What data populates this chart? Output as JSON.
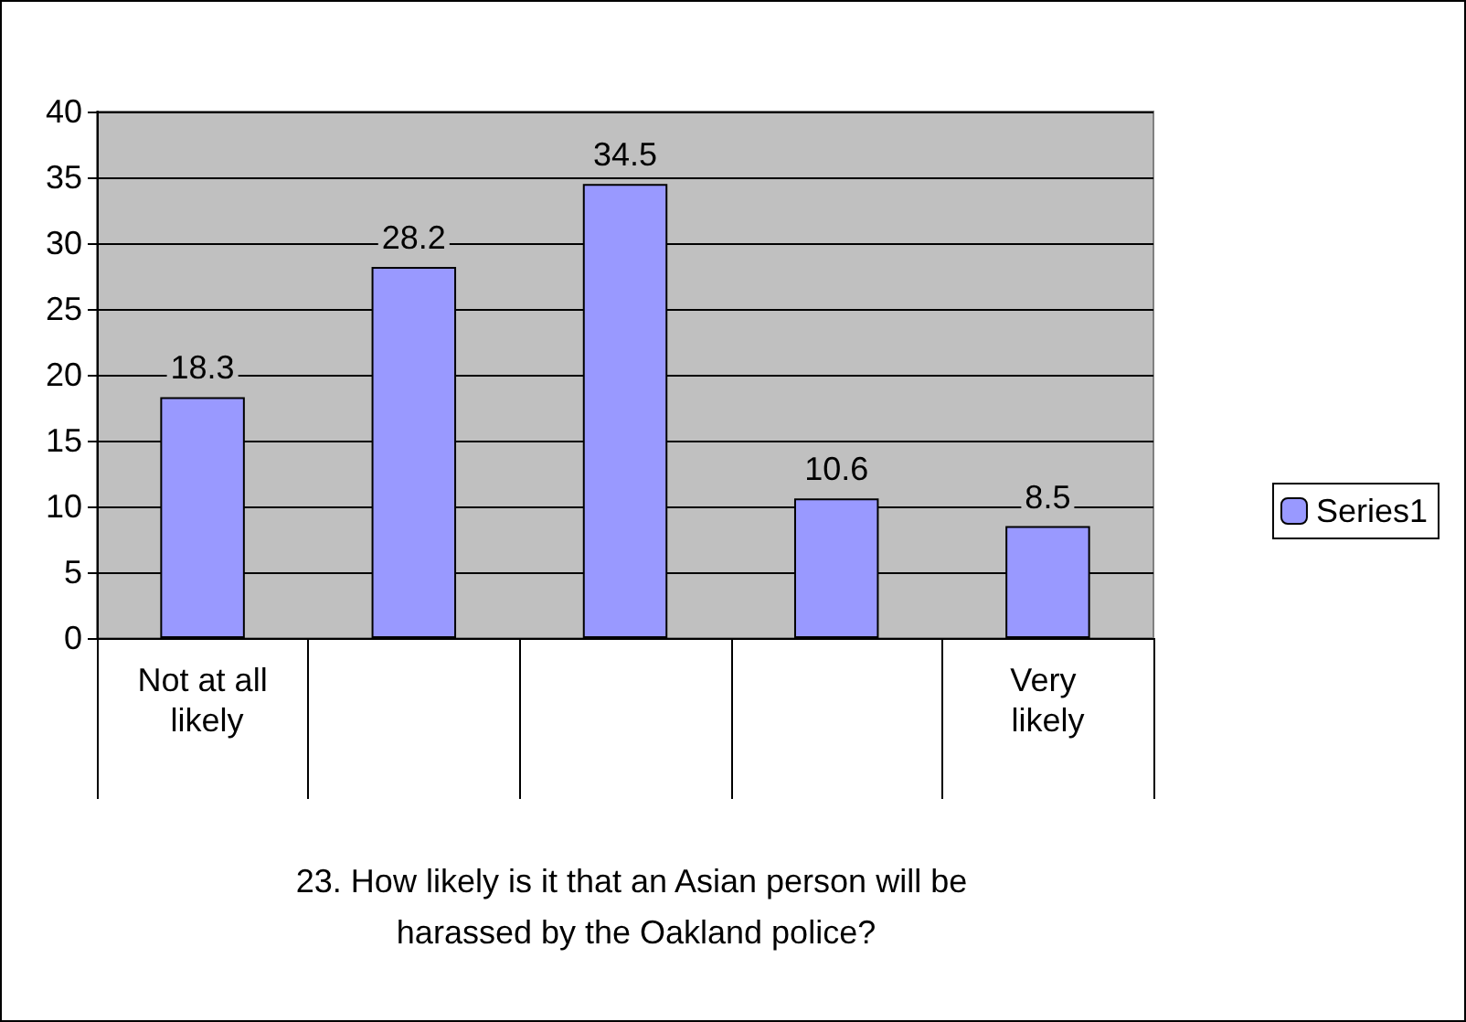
{
  "chart_data": {
    "type": "bar",
    "xlabel": "23. How likely is it that an Asian person will be harassed by the Oakland police?",
    "categories": [
      "Not at all likely",
      null,
      null,
      null,
      "Very likely"
    ],
    "series": [
      {
        "name": "Series1",
        "color": "#9999ff",
        "values": [
          18.3,
          28.2,
          34.5,
          10.6,
          8.5
        ]
      }
    ],
    "ylim": [
      0,
      40
    ],
    "yticks": [
      0,
      5,
      10,
      15,
      20,
      25,
      30,
      35,
      40
    ],
    "grid": "y",
    "legend": "right",
    "data_labels": true
  }
}
